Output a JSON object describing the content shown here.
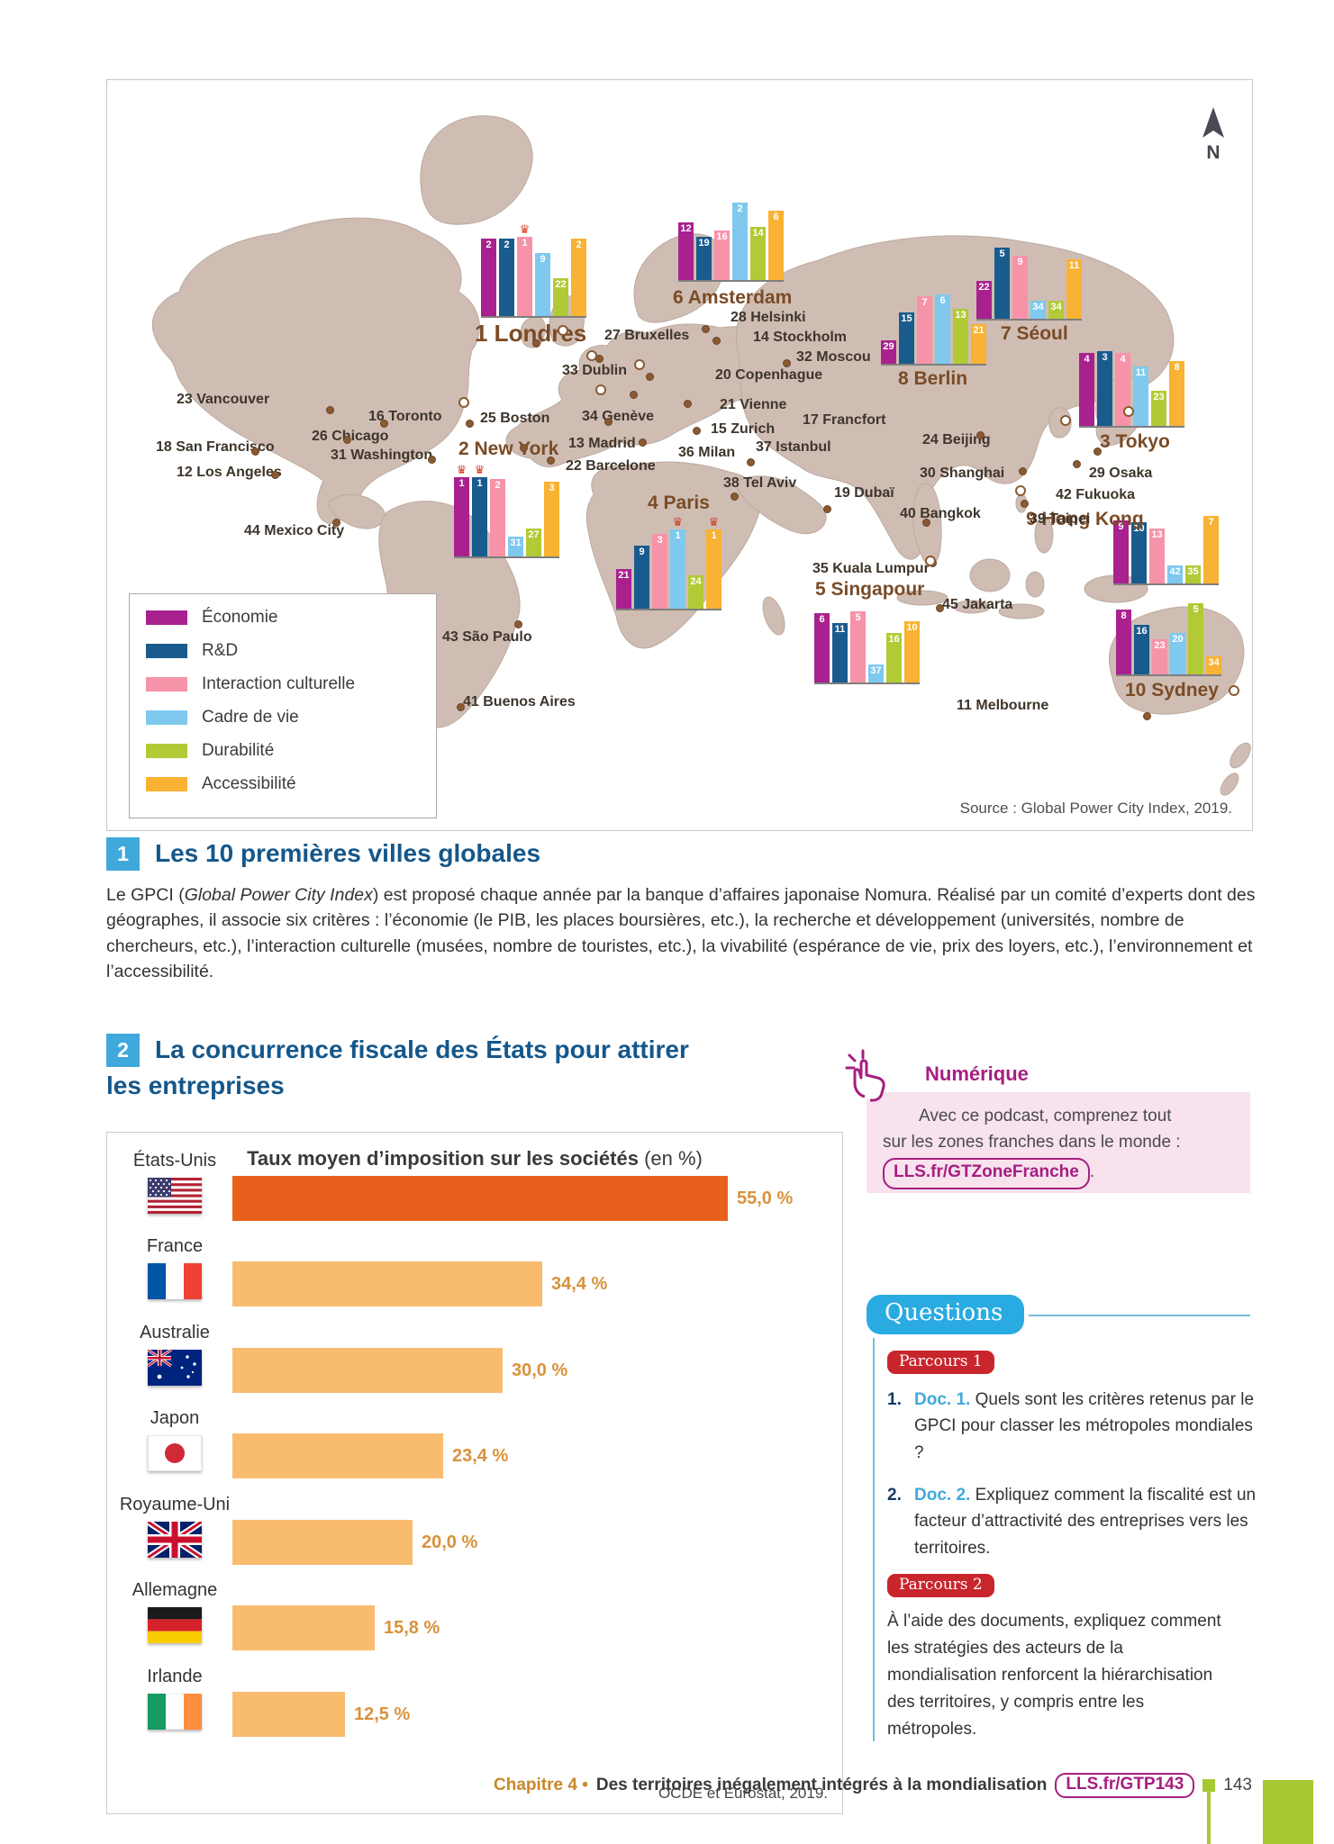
{
  "doc1": {
    "number": "1",
    "heading": "Les 10 premières villes globales",
    "body": {
      "pre": "Le GPCI (",
      "italic": "Global Power City Index",
      "post": ") est proposé chaque année par la banque d’affaires japonaise Nomura. Réalisé par un comité d’experts dont des géographes, il associe six critères : l’économie (le PIB, les places boursières, etc.), la recherche et développement (universités, nombre de chercheurs, etc.), l’interaction culturelle (musées, nombre de touristes, etc.), la vivabilité (espérance de vie, prix des loyers, etc.), l’environnement et l’accessibilité."
    },
    "map": {
      "north_label": "N",
      "source": "Source : Global Power City Index, 2019.",
      "other_cities": [
        "23 Vancouver",
        "16 Toronto",
        "25 Boston",
        "26 Chicago",
        "18 San Francisco",
        "31 Washington",
        "12 Los Angeles",
        "44 Mexico City",
        "43 São Paulo",
        "41 Buenos Aires",
        "27 Bruxelles",
        "33 Dublin",
        "34 Genève",
        "13 Madrid",
        "22 Barcelone",
        "28 Helsinki",
        "14 Stockholm",
        "32 Moscou",
        "20 Copenhague",
        "21 Vienne",
        "15 Zurich",
        "36 Milan",
        "17 Francfort",
        "37 Istanbul",
        "38 Tel Aviv",
        "19 Dubaï",
        "24 Beijing",
        "30 Shanghai",
        "29 Osaka",
        "42 Fukuoka",
        "39 Taipei",
        "40 Bangkok",
        "35 Kuala Lumpur",
        "45 Jakarta",
        "11 Melbourne"
      ]
    }
  },
  "doc2": {
    "number": "2",
    "heading_line1": "La concurrence fiscale des États pour attirer",
    "heading_line2": "les entreprises"
  },
  "chart_data": [
    {
      "id": "gpci",
      "type": "bar",
      "title": "Les 10 premières villes globales",
      "categories": [
        "Économie",
        "R&D",
        "Interaction culturelle",
        "Cadre de vie",
        "Durabilité",
        "Accessibilité"
      ],
      "colors": [
        "#a9218e",
        "#1a5b8e",
        "#f693a8",
        "#7fc9ef",
        "#b2ca35",
        "#f9b233"
      ],
      "series": [
        {
          "name": "1 Londres",
          "values": [
            2,
            2,
            1,
            9,
            22,
            2
          ],
          "crowns": [
            2
          ]
        },
        {
          "name": "2 New York",
          "values": [
            1,
            1,
            2,
            31,
            27,
            3
          ],
          "crowns": [
            0,
            1
          ]
        },
        {
          "name": "3 Tokyo",
          "values": [
            4,
            3,
            4,
            11,
            23,
            8
          ],
          "crowns": []
        },
        {
          "name": "4 Paris",
          "values": [
            21,
            9,
            3,
            1,
            24,
            1
          ],
          "crowns": [
            3,
            5
          ]
        },
        {
          "name": "5 Singapour",
          "values": [
            6,
            11,
            5,
            37,
            16,
            10
          ],
          "crowns": []
        },
        {
          "name": "6 Amsterdam",
          "values": [
            12,
            19,
            16,
            2,
            14,
            6
          ],
          "crowns": []
        },
        {
          "name": "7 Séoul",
          "values": [
            22,
            5,
            9,
            34,
            34,
            11
          ],
          "crowns": []
        },
        {
          "name": "8 Berlin",
          "values": [
            29,
            15,
            7,
            6,
            13,
            21
          ],
          "crowns": []
        },
        {
          "name": "9 Hong Kong",
          "values": [
            9,
            10,
            13,
            42,
            35,
            7
          ],
          "crowns": []
        },
        {
          "name": "10 Sydney",
          "values": [
            8,
            16,
            23,
            20,
            5,
            34
          ],
          "crowns": []
        }
      ],
      "legend_position": "bottom-left",
      "source": "Source : Global Power City Index, 2019."
    },
    {
      "id": "tax",
      "type": "bar",
      "title": "Taux moyen d’imposition sur les sociétés",
      "title_suffix": " (en %)",
      "categories": [
        "États-Unis",
        "France",
        "Australie",
        "Japon",
        "Royaume-Uni",
        "Allemagne",
        "Irlande"
      ],
      "values": [
        55.0,
        34.4,
        30.0,
        23.4,
        20.0,
        15.8,
        12.5
      ],
      "value_labels": [
        "55,0 %",
        "34,4 %",
        "30,0 %",
        "23,4 %",
        "20,0 %",
        "15,8 %",
        "12,5 %"
      ],
      "xlim": [
        0,
        55
      ],
      "bar_color": "#f9bc6f",
      "highlight_color": "#e8611c",
      "highlight_index": 0,
      "source": "OCDE et Eurostat, 2019."
    }
  ],
  "numerique": {
    "title": "Numérique",
    "line1": "Avec ce podcast, comprenez tout",
    "line2": "sur les zones franches dans le monde :",
    "link": "LLS.fr/GTZoneFranche",
    "suffix": "."
  },
  "questions": {
    "badge": "Questions",
    "parcours1": "Parcours 1",
    "items": [
      {
        "num": "1.",
        "doc": "Doc. 1.",
        "text": "Quels sont les critères retenus par le GPCI pour classer les métropoles mondiales ?"
      },
      {
        "num": "2.",
        "doc": "Doc. 2.",
        "text": "Expliquez comment la fiscalité est un facteur d’attractivité des entreprises vers les territoires."
      }
    ],
    "parcours2": "Parcours 2",
    "parcours2_text": "À l’aide des documents, expliquez comment les stratégies des acteurs de la mondialisation renforcent la hiérarchisation des territoires, y compris entre les métropoles."
  },
  "footer": {
    "chapter": "Chapitre 4",
    "bullet": "•",
    "title": "Des territoires inégalement intégrés à la mondialisation",
    "link": "LLS.fr/GTP143",
    "page": "143"
  }
}
